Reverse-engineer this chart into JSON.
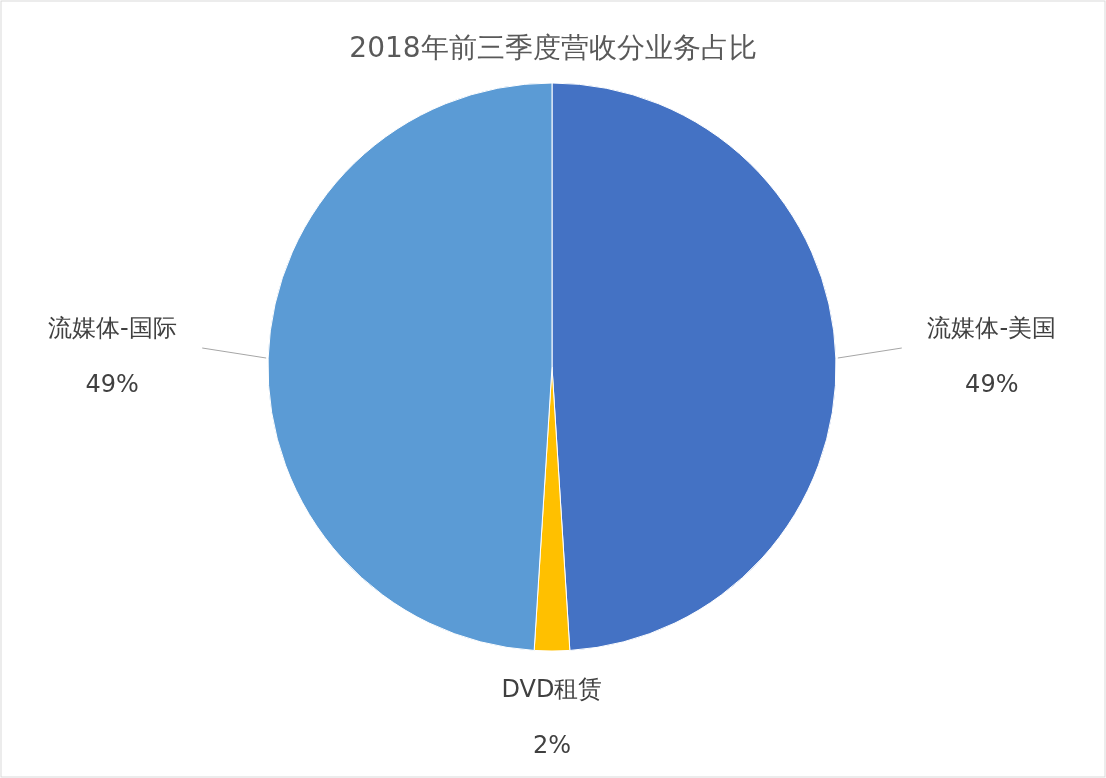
{
  "chart_data": {
    "type": "pie",
    "title": "2018年前三季度营收分业务占比",
    "categories": [
      "流媒体-美国",
      "DVD租赁",
      "流媒体-国际"
    ],
    "values": [
      49,
      2,
      49
    ],
    "colors": [
      "#4472c4",
      "#ffc000",
      "#5b9bd5"
    ],
    "value_labels": [
      "49%",
      "2%",
      "49%"
    ],
    "legend": false
  }
}
